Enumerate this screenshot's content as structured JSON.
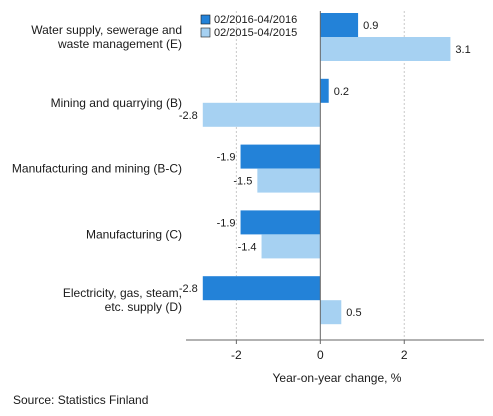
{
  "chart_data": {
    "type": "bar",
    "orientation": "horizontal",
    "categories": [
      [
        "Water supply, sewerage and",
        "waste management (E)"
      ],
      [
        "Mining and quarrying (B)"
      ],
      [
        "Manufacturing and mining (B-C)"
      ],
      [
        "Manufacturing (C)"
      ],
      [
        "Electricity, gas, steam,",
        "etc. supply (D)"
      ]
    ],
    "series": [
      {
        "name": "02/2016-04/2016",
        "color": "#2382d8",
        "values": [
          0.9,
          0.2,
          -1.9,
          -1.9,
          -2.8
        ]
      },
      {
        "name": "02/2015-04/2015",
        "color": "#a6d1f2",
        "values": [
          3.1,
          -2.8,
          -1.5,
          -1.4,
          0.5
        ]
      }
    ],
    "value_labels": [
      [
        "0.9",
        "0.2",
        "-1.9",
        "-1.9",
        "-2.8"
      ],
      [
        "3.1",
        "-2.8",
        "-1.5",
        "-1.4",
        "0.5"
      ]
    ],
    "xlim": [
      -3.2,
      3.9
    ],
    "xticks": [
      -2,
      0,
      2
    ],
    "xtick_labels": [
      "-2",
      "0",
      "2"
    ],
    "xlabel": "Year-on-year change, %",
    "legend_position": "top-left",
    "grid": "vertical",
    "source": "Source: Statistics Finland"
  }
}
